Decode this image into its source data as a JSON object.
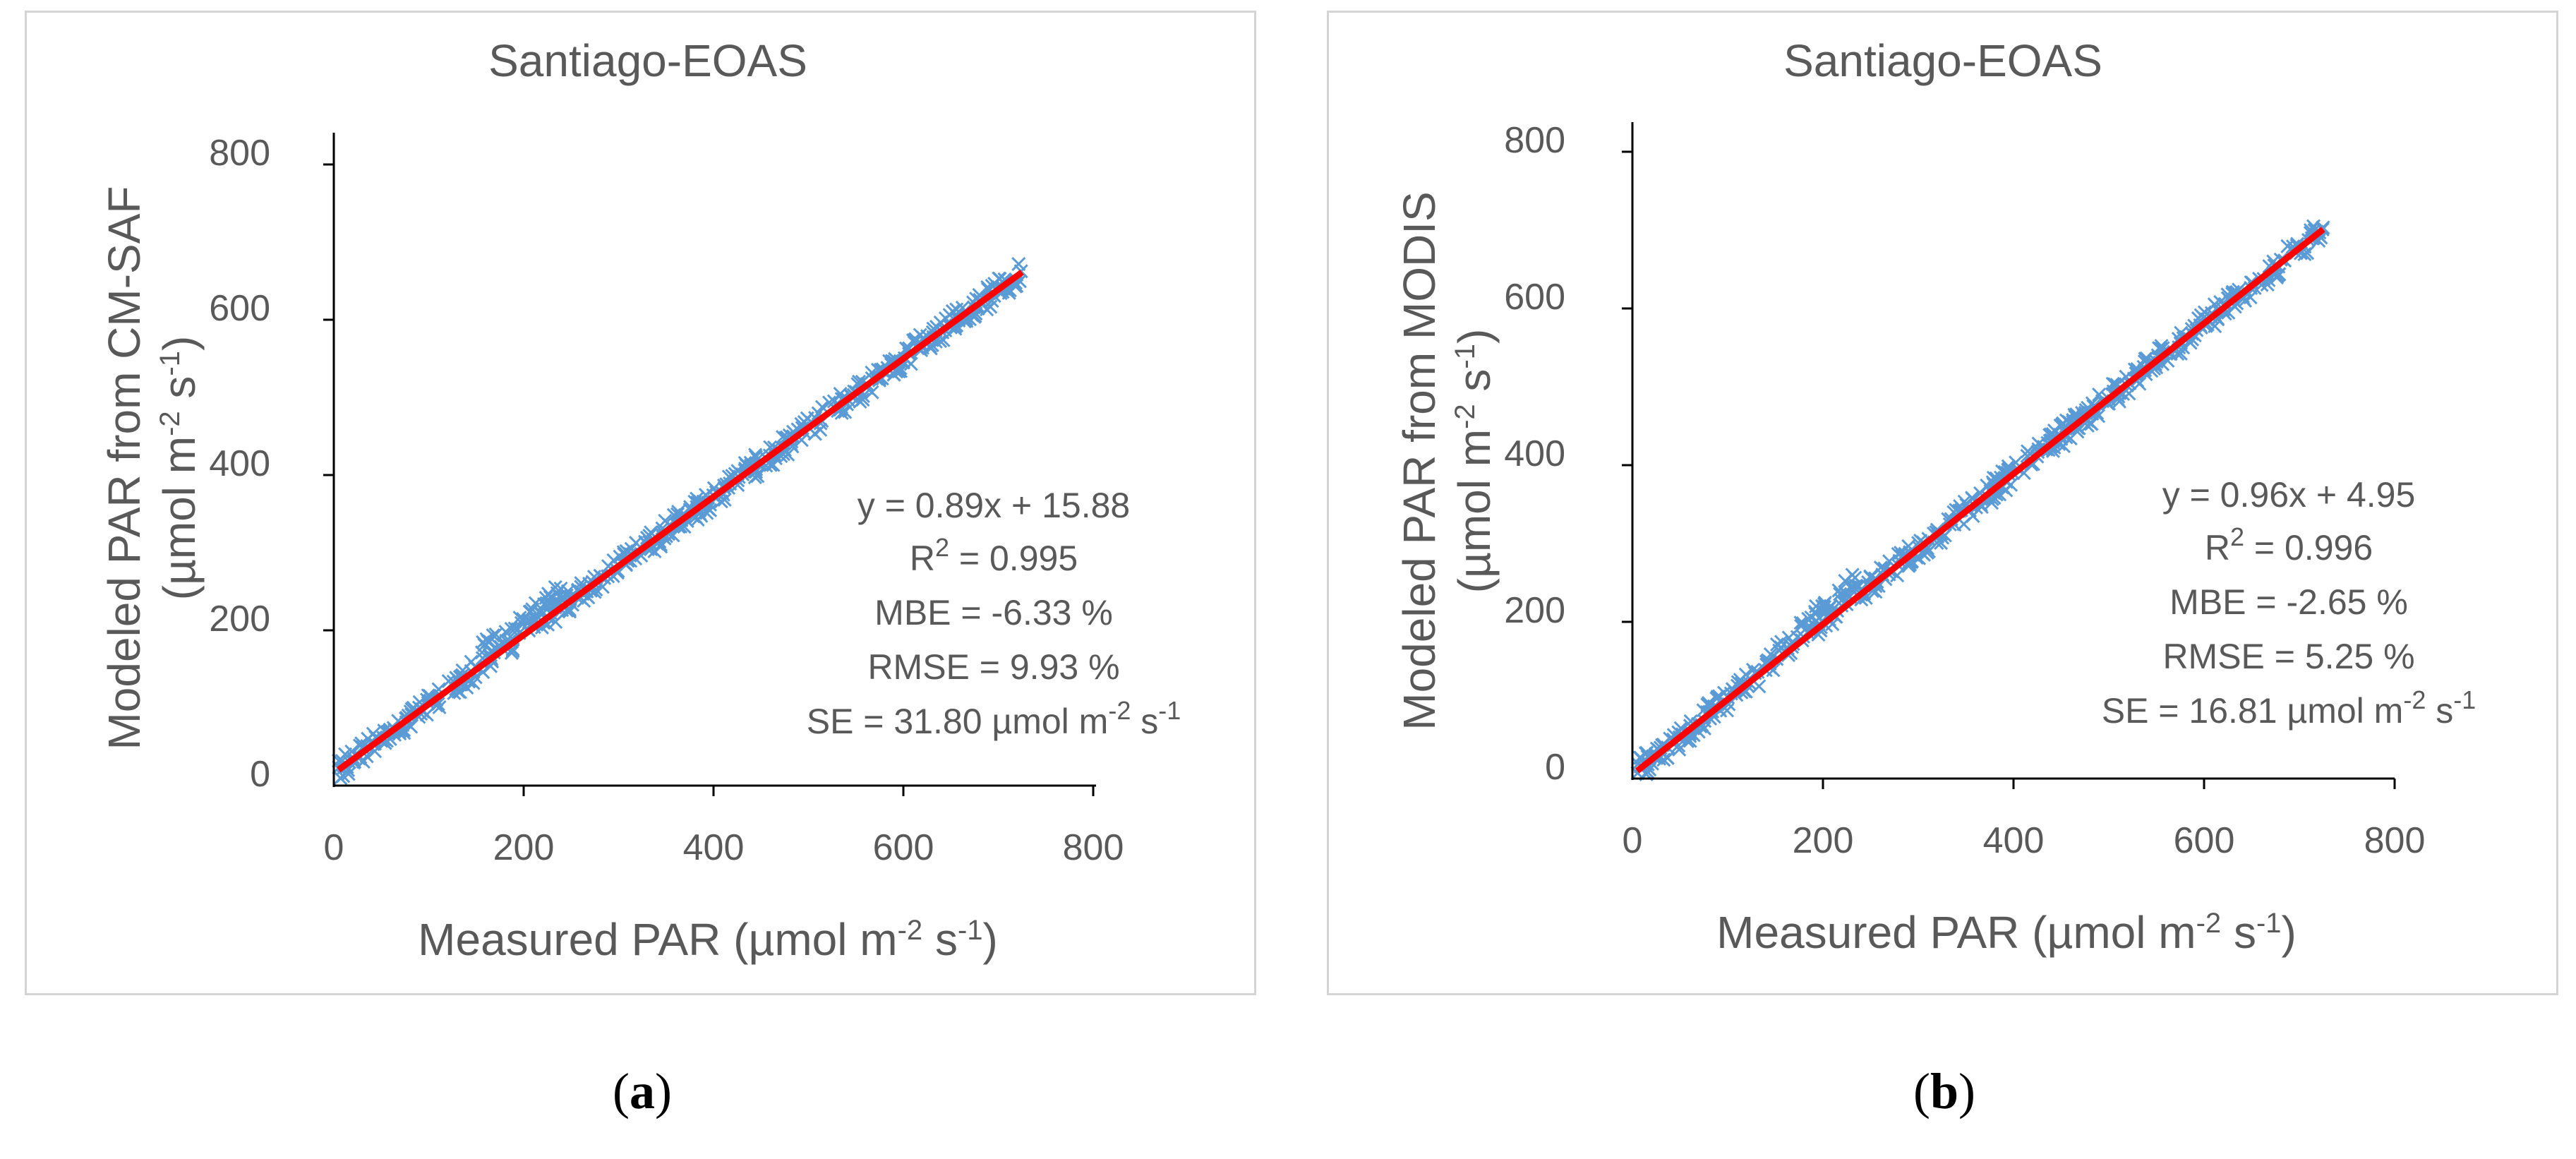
{
  "chart_data": [
    {
      "panel": "a",
      "type": "scatter",
      "title": "Santiago-EOAS",
      "xlabel": {
        "main": "Measured PAR (µmol m",
        "exp1": "-2",
        "mid": " s",
        "exp2": "-1",
        "end": ")"
      },
      "ylabel": {
        "line1": "Modeled PAR from CM-SAF",
        "line2_main": "(µmol m",
        "exp1": "-2",
        "mid": " s",
        "exp2": "-1",
        "end": ")"
      },
      "xlim": [
        0,
        800
      ],
      "ylim": [
        0,
        800
      ],
      "xticks": [
        "0",
        "200",
        "400",
        "600",
        "800"
      ],
      "yticks": [
        "0",
        "200",
        "400",
        "600",
        "800"
      ],
      "fit": {
        "slope": 0.89,
        "intercept": 15.88,
        "x_range": [
          5,
          725
        ]
      },
      "marker_color": "#5b9bd5",
      "fit_color": "#ff0000",
      "stats": {
        "equation": "y = 0.89x + 15.88",
        "r2_prefix": "R",
        "r2_sup": "2",
        "r2_rest": " = 0.995",
        "mbe": "MBE = -6.33 %",
        "rmse": "RMSE = 9.93 %",
        "se_main": "SE = 31.80 µmol m",
        "se_exp1": "-2",
        "se_mid": " s",
        "se_exp2": "-1"
      },
      "cluster": {
        "x_range": [
          150,
          240
        ],
        "bump": 20
      }
    },
    {
      "panel": "b",
      "type": "scatter",
      "title": "Santiago-EOAS",
      "xlabel": {
        "main": "Measured PAR (µmol m",
        "exp1": "-2",
        "mid": " s",
        "exp2": "-1",
        "end": ")"
      },
      "ylabel": {
        "line1": "Modeled PAR from MODIS",
        "line2_main": "(µmol m",
        "exp1": "-2",
        "mid": " s",
        "exp2": "-1",
        "end": ")"
      },
      "xlim": [
        0,
        800
      ],
      "ylim": [
        0,
        800
      ],
      "xticks": [
        "0",
        "200",
        "400",
        "600",
        "800"
      ],
      "yticks": [
        "0",
        "200",
        "400",
        "600",
        "800"
      ],
      "fit": {
        "slope": 0.96,
        "intercept": 4.95,
        "x_range": [
          5,
          725
        ]
      },
      "marker_color": "#5b9bd5",
      "fit_color": "#ff0000",
      "stats": {
        "equation": "y = 0.96x + 4.95",
        "r2_prefix": "R",
        "r2_sup": "2",
        "r2_rest": " = 0.996",
        "mbe": "MBE = -2.65 %",
        "rmse": "RMSE = 5.25 %",
        "se_main": "SE = 16.81 µmol m",
        "se_exp1": "-2",
        "se_mid": " s",
        "se_exp2": "-1"
      },
      "cluster": {
        "x_range": [
          150,
          240
        ],
        "bump": 25
      }
    }
  ],
  "captions": {
    "a_open": "(",
    "a_letter": "a",
    "a_close": ")",
    "b_open": "(",
    "b_letter": "b",
    "b_close": ")"
  }
}
